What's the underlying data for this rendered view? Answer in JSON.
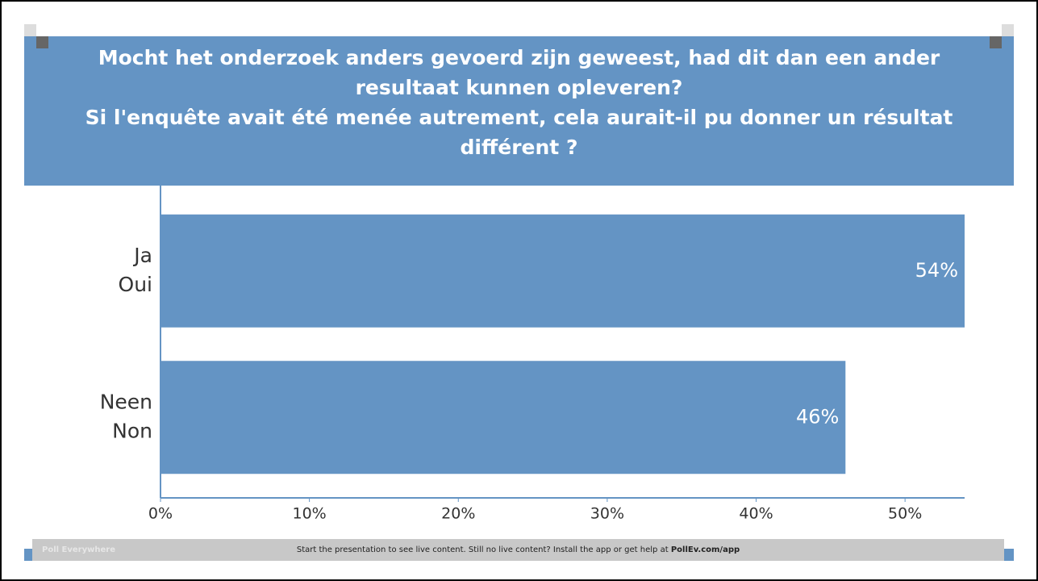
{
  "title": [
    "Mocht het onderzoek anders gevoerd zijn geweest, had dit dan een ander resultaat kunnen opleveren?",
    "Si l'enquête avait été menée autrement, cela aurait-il pu donner un résultat différent ?"
  ],
  "chart_data": {
    "type": "hbar",
    "categories": [
      [
        "Ja",
        "Oui"
      ],
      [
        "Neen",
        "Non"
      ]
    ],
    "values": [
      54,
      46
    ],
    "value_labels": [
      "54%",
      "46%"
    ],
    "color": "#6494c4",
    "xlim": [
      0,
      54
    ],
    "xticks": [
      {
        "value": 0,
        "label": "0%"
      },
      {
        "value": 10,
        "label": "10%"
      },
      {
        "value": 20,
        "label": "20%"
      },
      {
        "value": 30,
        "label": "30%"
      },
      {
        "value": 40,
        "label": "40%"
      },
      {
        "value": 50,
        "label": "50%"
      }
    ]
  },
  "footer": {
    "brand": "Poll Everywhere",
    "message": "Start the presentation to see live content. Still no live content? Install the app or get help at",
    "link": "PollEv.com/app"
  }
}
